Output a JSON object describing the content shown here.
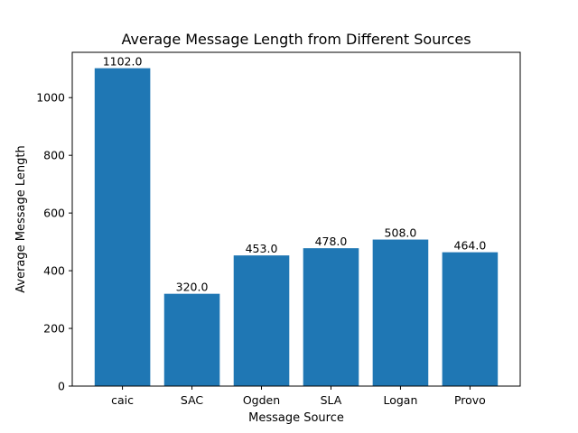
{
  "chart_data": {
    "type": "bar",
    "title": "Average Message Length from Different Sources",
    "xlabel": "Message Source",
    "ylabel": "Average Message Length",
    "categories": [
      "caic",
      "SAC",
      "Ogden",
      "SLA",
      "Logan",
      "Provo"
    ],
    "values": [
      1102.0,
      320.0,
      453.0,
      478.0,
      508.0,
      464.0
    ],
    "data_labels": [
      "1102.0",
      "320.0",
      "453.0",
      "478.0",
      "508.0",
      "464.0"
    ],
    "ylim": [
      0,
      1157.1
    ],
    "yticks": [
      0,
      200,
      400,
      600,
      800,
      1000
    ],
    "grid": false,
    "colors": {
      "bar": "#1f77b4"
    }
  }
}
